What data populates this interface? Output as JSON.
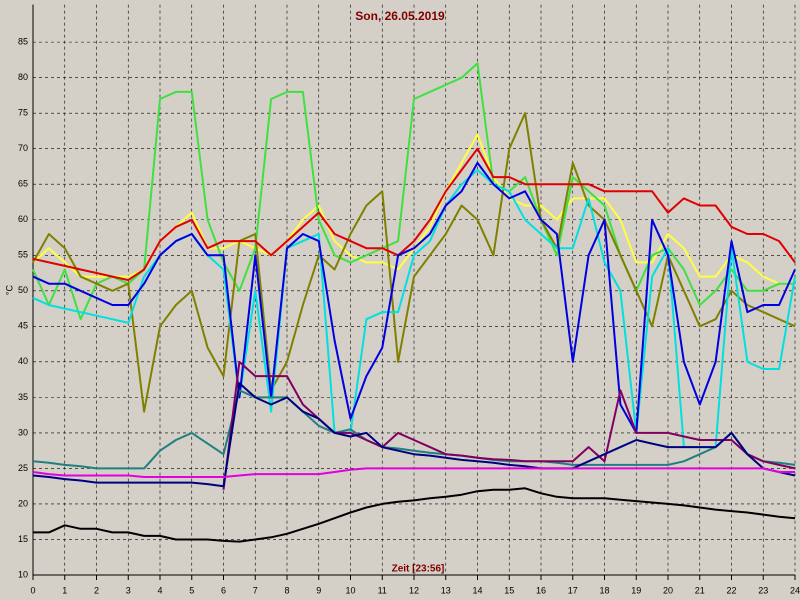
{
  "chart_data": {
    "type": "line",
    "title": "Son, 26.05.2019",
    "x_label": "Zeit [23:56]",
    "y_label": "°C",
    "xlim": [
      0,
      24
    ],
    "ylim": [
      10,
      90
    ],
    "xticks": [
      0,
      1,
      2,
      3,
      4,
      5,
      6,
      7,
      8,
      9,
      10,
      11,
      12,
      13,
      14,
      15,
      16,
      17,
      18,
      19,
      20,
      21,
      22,
      23,
      24
    ],
    "yticks": [
      10,
      15,
      20,
      25,
      30,
      35,
      40,
      45,
      50,
      55,
      60,
      65,
      70,
      75,
      80,
      85
    ],
    "grid": true,
    "x": [
      0,
      0.5,
      1,
      1.5,
      2,
      2.5,
      3,
      3.5,
      4,
      4.5,
      5,
      5.5,
      6,
      6.5,
      7,
      7.5,
      8,
      8.5,
      9,
      9.5,
      10,
      10.5,
      11,
      11.5,
      12,
      12.5,
      13,
      13.5,
      14,
      14.5,
      15,
      15.5,
      16,
      16.5,
      17,
      17.5,
      18,
      18.5,
      19,
      19.5,
      20,
      20.5,
      21,
      21.5,
      22,
      22.5,
      23,
      23.5,
      24
    ],
    "series": [
      {
        "color": "#ffff40",
        "values": [
          54,
          56,
          54,
          52,
          52,
          52,
          52,
          53,
          57,
          59,
          61,
          56,
          56,
          57,
          56,
          55,
          57,
          60,
          62,
          57,
          55,
          54,
          54,
          53,
          56,
          59,
          64,
          68,
          72,
          66,
          63,
          62,
          62,
          60,
          63,
          63,
          63,
          60,
          54,
          54,
          58,
          56,
          52,
          52,
          55,
          54,
          52,
          51,
          51
        ]
      },
      {
        "color": "#40e040",
        "values": [
          53,
          48,
          53,
          46,
          51,
          52,
          51,
          53,
          77,
          78,
          78,
          60,
          54,
          50,
          56,
          77,
          78,
          78,
          60,
          55,
          54,
          55,
          56,
          57,
          77,
          78,
          79,
          80,
          82,
          65,
          64,
          66,
          60,
          55,
          66,
          64,
          62,
          55,
          50,
          55,
          56,
          53,
          48,
          50,
          53,
          50,
          50,
          51,
          51
        ]
      },
      {
        "color": "#808000",
        "values": [
          54,
          58,
          56,
          52,
          51,
          50,
          51,
          33,
          45,
          48,
          50,
          42,
          38,
          57,
          58,
          36,
          40,
          48,
          55,
          53,
          58,
          62,
          64,
          40,
          52,
          55,
          58,
          62,
          60,
          55,
          70,
          75,
          60,
          56,
          68,
          62,
          60,
          55,
          50,
          45,
          55,
          50,
          45,
          46,
          50,
          48,
          47,
          46,
          45
        ]
      },
      {
        "color": "#00e0e0",
        "values": [
          49,
          48,
          47.5,
          47,
          46.5,
          46,
          45.5,
          52,
          55,
          57,
          58,
          55,
          53,
          35,
          50,
          33,
          56,
          57,
          58,
          30,
          30,
          46,
          47,
          47,
          55,
          57,
          62,
          65,
          67,
          65,
          64,
          60,
          58,
          56,
          56,
          63,
          54,
          50,
          30,
          52,
          56,
          28,
          28,
          28,
          56,
          40,
          39,
          39,
          52
        ]
      },
      {
        "color": "#e00000",
        "values": [
          54.5,
          54,
          53.5,
          53,
          52.5,
          52,
          51.5,
          53,
          57,
          59,
          60,
          56,
          57,
          57,
          57,
          55,
          57,
          59,
          61,
          58,
          57,
          56,
          56,
          55,
          57,
          60,
          64,
          67,
          70,
          66,
          66,
          65,
          65,
          65,
          65,
          65,
          64,
          64,
          64,
          64,
          61,
          63,
          62,
          62,
          59,
          58,
          58,
          57,
          54
        ]
      },
      {
        "color": "#0000e0",
        "values": [
          52,
          51,
          51,
          50,
          49,
          48,
          48,
          51,
          55,
          57,
          58,
          55,
          55,
          35,
          55,
          35,
          56,
          58,
          57,
          43,
          32,
          38,
          42,
          55,
          56,
          58,
          62,
          64,
          68,
          65,
          63,
          64,
          60,
          58,
          40,
          55,
          60,
          34,
          30,
          60,
          55,
          40,
          34,
          40,
          57,
          47,
          48,
          48,
          53
        ]
      },
      {
        "color": "#208080",
        "values": [
          26,
          25.8,
          25.5,
          25.3,
          25,
          25,
          25,
          25,
          27.5,
          29,
          30,
          28.5,
          27,
          36,
          35,
          35,
          35,
          33,
          31,
          30,
          30.5,
          29,
          28,
          27.8,
          27.5,
          27.2,
          27,
          26.8,
          26.5,
          26.2,
          26,
          26,
          26,
          25.8,
          25.5,
          25.5,
          25.5,
          25.5,
          25.5,
          25.5,
          25.5,
          26,
          27,
          28,
          30,
          27,
          26,
          25.8,
          25.5
        ]
      },
      {
        "color": "#800060",
        "values": [
          null,
          null,
          null,
          null,
          null,
          null,
          null,
          null,
          null,
          null,
          null,
          null,
          22,
          40,
          38,
          38,
          38,
          34,
          32,
          30,
          30,
          29,
          28,
          30,
          29,
          28,
          27,
          26.8,
          26.5,
          26.3,
          26.2,
          26,
          26,
          26,
          26,
          28,
          26,
          36,
          30,
          30,
          30,
          29.5,
          29,
          29,
          29,
          27,
          26,
          25.5,
          25
        ]
      },
      {
        "color": "#000080",
        "values": [
          24,
          23.8,
          23.5,
          23.3,
          23,
          23,
          23,
          23,
          23,
          23,
          23,
          22.8,
          22.5,
          37,
          35,
          34,
          35,
          33,
          32,
          30,
          29.5,
          30,
          28,
          27.5,
          27,
          26.8,
          26.5,
          26.2,
          26,
          25.8,
          25.5,
          25.3,
          25,
          25,
          25,
          26,
          27,
          28,
          29,
          28.5,
          28,
          28,
          28,
          28,
          30,
          27,
          25,
          24.5,
          24
        ]
      },
      {
        "color": "#e000e0",
        "values": [
          24.5,
          24.2,
          24,
          24,
          24,
          24,
          24,
          23.8,
          23.8,
          23.8,
          23.8,
          23.8,
          23.8,
          24,
          24.2,
          24.2,
          24.2,
          24.2,
          24.2,
          24.5,
          24.8,
          25,
          25,
          25,
          25,
          25,
          25,
          25,
          25,
          25,
          25,
          25,
          25,
          25,
          25,
          25,
          25,
          25,
          25,
          25,
          25,
          25,
          25,
          25,
          25,
          25,
          25,
          24.5,
          24.5
        ]
      },
      {
        "color": "#000000",
        "values": [
          16,
          16,
          17,
          16.5,
          16.5,
          16,
          16,
          15.5,
          15.5,
          15,
          15,
          15,
          14.8,
          14.7,
          15,
          15.3,
          15.8,
          16.5,
          17.2,
          18,
          18.8,
          19.5,
          20,
          20.3,
          20.5,
          20.8,
          21,
          21.3,
          21.8,
          22,
          22,
          22.2,
          21.5,
          21,
          20.8,
          20.8,
          20.8,
          20.6,
          20.4,
          20.2,
          20,
          19.8,
          19.5,
          19.2,
          19,
          18.8,
          18.5,
          18.2,
          18
        ]
      }
    ]
  }
}
